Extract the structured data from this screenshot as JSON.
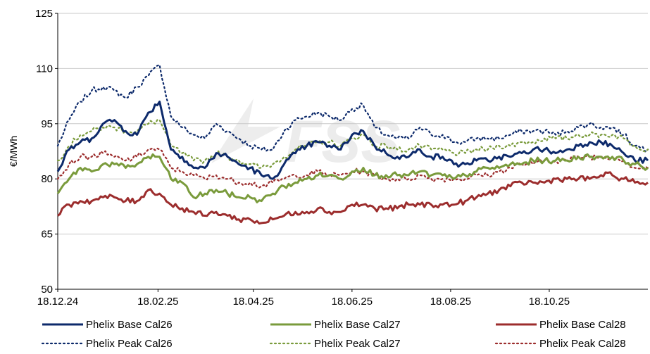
{
  "chart_data": {
    "type": "line",
    "ylabel": "€/MWh",
    "ylim": [
      50,
      125
    ],
    "yticks": [
      50,
      65,
      80,
      95,
      110,
      125
    ],
    "xlim": [
      "2024-12-18",
      "2025-12-18"
    ],
    "xticks": [
      "18.12.24",
      "18.02.25",
      "18.04.25",
      "18.06.25",
      "18.08.25",
      "18.10.25"
    ],
    "xtick_dates": [
      "2024-12-18",
      "2025-02-18",
      "2025-04-18",
      "2025-06-18",
      "2025-08-18",
      "2025-10-18"
    ],
    "grid": "horizontal",
    "legend_position": "bottom",
    "watermark": "FSS",
    "series": [
      {
        "name": "Phelix Base Cal26",
        "color": "#0d2a6b",
        "dash": "solid",
        "x": [
          "2024-12-18",
          "2024-12-25",
          "2025-01-01",
          "2025-01-08",
          "2025-01-15",
          "2025-01-22",
          "2025-01-29",
          "2025-02-05",
          "2025-02-12",
          "2025-02-19",
          "2025-02-26",
          "2025-03-05",
          "2025-03-12",
          "2025-03-19",
          "2025-03-26",
          "2025-04-02",
          "2025-04-09",
          "2025-04-16",
          "2025-04-23",
          "2025-04-30",
          "2025-05-07",
          "2025-05-14",
          "2025-05-21",
          "2025-05-28",
          "2025-06-04",
          "2025-06-11",
          "2025-06-18",
          "2025-06-25",
          "2025-07-02",
          "2025-07-09",
          "2025-07-16",
          "2025-07-23",
          "2025-07-30",
          "2025-08-06",
          "2025-08-13",
          "2025-08-20",
          "2025-08-27",
          "2025-09-03",
          "2025-09-10",
          "2025-09-17",
          "2025-09-24",
          "2025-10-01",
          "2025-10-08",
          "2025-10-15",
          "2025-10-22",
          "2025-10-29",
          "2025-11-05",
          "2025-11-12",
          "2025-11-19",
          "2025-11-26",
          "2025-12-03",
          "2025-12-10",
          "2025-12-18"
        ],
        "y": [
          82,
          88,
          90,
          91,
          95,
          96,
          93,
          92,
          98,
          101,
          88,
          86,
          83,
          83,
          87,
          86,
          84,
          83,
          81,
          80,
          84,
          87,
          89,
          90,
          89,
          88,
          92,
          93,
          89,
          87,
          86,
          86,
          88,
          86,
          86,
          84,
          84,
          85,
          85,
          86,
          86,
          87,
          88,
          88,
          87,
          88,
          89,
          90,
          90,
          89,
          87,
          85,
          85
        ]
      },
      {
        "name": "Phelix Base Cal27",
        "color": "#7a9b3c",
        "dash": "solid",
        "x": [
          "2024-12-18",
          "2024-12-25",
          "2025-01-01",
          "2025-01-08",
          "2025-01-15",
          "2025-01-22",
          "2025-01-29",
          "2025-02-05",
          "2025-02-12",
          "2025-02-19",
          "2025-02-26",
          "2025-03-05",
          "2025-03-12",
          "2025-03-19",
          "2025-03-26",
          "2025-04-02",
          "2025-04-09",
          "2025-04-16",
          "2025-04-23",
          "2025-04-30",
          "2025-05-07",
          "2025-05-14",
          "2025-05-21",
          "2025-05-28",
          "2025-06-04",
          "2025-06-11",
          "2025-06-18",
          "2025-06-25",
          "2025-07-02",
          "2025-07-09",
          "2025-07-16",
          "2025-07-23",
          "2025-07-30",
          "2025-08-06",
          "2025-08-13",
          "2025-08-20",
          "2025-08-27",
          "2025-09-03",
          "2025-09-10",
          "2025-09-17",
          "2025-09-24",
          "2025-10-01",
          "2025-10-08",
          "2025-10-15",
          "2025-10-22",
          "2025-10-29",
          "2025-11-05",
          "2025-11-12",
          "2025-11-19",
          "2025-11-26",
          "2025-12-03",
          "2025-12-10",
          "2025-12-18"
        ],
        "y": [
          76,
          80,
          83,
          82,
          84,
          84,
          83,
          84,
          86,
          86,
          80,
          79,
          75,
          76,
          77,
          76,
          75,
          75,
          74,
          76,
          78,
          79,
          80,
          81,
          81,
          80,
          82,
          83,
          81,
          81,
          81,
          81,
          82,
          81,
          81,
          80,
          81,
          82,
          83,
          83,
          84,
          84,
          85,
          85,
          85,
          85,
          86,
          86,
          86,
          86,
          85,
          84,
          83
        ]
      },
      {
        "name": "Phelix Base Cal28",
        "color": "#9c2d2d",
        "dash": "solid",
        "x": [
          "2024-12-18",
          "2024-12-25",
          "2025-01-01",
          "2025-01-08",
          "2025-01-15",
          "2025-01-22",
          "2025-01-29",
          "2025-02-05",
          "2025-02-12",
          "2025-02-19",
          "2025-02-26",
          "2025-03-05",
          "2025-03-12",
          "2025-03-19",
          "2025-03-26",
          "2025-04-02",
          "2025-04-09",
          "2025-04-16",
          "2025-04-23",
          "2025-04-30",
          "2025-05-07",
          "2025-05-14",
          "2025-05-21",
          "2025-05-28",
          "2025-06-04",
          "2025-06-11",
          "2025-06-18",
          "2025-06-25",
          "2025-07-02",
          "2025-07-09",
          "2025-07-16",
          "2025-07-23",
          "2025-07-30",
          "2025-08-06",
          "2025-08-13",
          "2025-08-20",
          "2025-08-27",
          "2025-09-03",
          "2025-09-10",
          "2025-09-17",
          "2025-09-24",
          "2025-10-01",
          "2025-10-08",
          "2025-10-15",
          "2025-10-22",
          "2025-10-29",
          "2025-11-05",
          "2025-11-12",
          "2025-11-19",
          "2025-11-26",
          "2025-12-03",
          "2025-12-10",
          "2025-12-18"
        ],
        "y": [
          70,
          73,
          74,
          74,
          75,
          75,
          74,
          74,
          77,
          76,
          73,
          72,
          71,
          70,
          71,
          70,
          69,
          69,
          68,
          69,
          70,
          71,
          71,
          72,
          71,
          71,
          73,
          73,
          72,
          72,
          72,
          73,
          73,
          73,
          73,
          73,
          74,
          75,
          76,
          77,
          78,
          79,
          79,
          79,
          80,
          80,
          80,
          80,
          81,
          81,
          80,
          79,
          79
        ]
      },
      {
        "name": "Phelix Peak Cal26",
        "color": "#0d2a6b",
        "dash": "dotted",
        "x": [
          "2024-12-18",
          "2024-12-25",
          "2025-01-01",
          "2025-01-08",
          "2025-01-15",
          "2025-01-22",
          "2025-01-29",
          "2025-02-05",
          "2025-02-12",
          "2025-02-19",
          "2025-02-26",
          "2025-03-05",
          "2025-03-12",
          "2025-03-19",
          "2025-03-26",
          "2025-04-02",
          "2025-04-09",
          "2025-04-16",
          "2025-04-23",
          "2025-04-30",
          "2025-05-07",
          "2025-05-14",
          "2025-05-21",
          "2025-05-28",
          "2025-06-04",
          "2025-06-11",
          "2025-06-18",
          "2025-06-25",
          "2025-07-02",
          "2025-07-09",
          "2025-07-16",
          "2025-07-23",
          "2025-07-30",
          "2025-08-06",
          "2025-08-13",
          "2025-08-20",
          "2025-08-27",
          "2025-09-03",
          "2025-09-10",
          "2025-09-17",
          "2025-09-24",
          "2025-10-01",
          "2025-10-08",
          "2025-10-15",
          "2025-10-22",
          "2025-10-29",
          "2025-11-05",
          "2025-11-12",
          "2025-11-19",
          "2025-11-26",
          "2025-12-03",
          "2025-12-10",
          "2025-12-18"
        ],
        "y": [
          89,
          96,
          101,
          104,
          105,
          104,
          102,
          105,
          108,
          111,
          97,
          94,
          92,
          91,
          95,
          93,
          91,
          89,
          88,
          88,
          93,
          96,
          97,
          98,
          97,
          96,
          99,
          100,
          94,
          92,
          91,
          91,
          94,
          92,
          92,
          90,
          90,
          91,
          91,
          91,
          92,
          93,
          93,
          93,
          92,
          93,
          94,
          95,
          94,
          94,
          92,
          89,
          88
        ]
      },
      {
        "name": "Phelix Peak Cal27",
        "color": "#7a9b3c",
        "dash": "dotted",
        "x": [
          "2024-12-18",
          "2024-12-25",
          "2025-01-01",
          "2025-01-08",
          "2025-01-15",
          "2025-01-22",
          "2025-01-29",
          "2025-02-05",
          "2025-02-12",
          "2025-02-19",
          "2025-02-26",
          "2025-03-05",
          "2025-03-12",
          "2025-03-19",
          "2025-03-26",
          "2025-04-02",
          "2025-04-09",
          "2025-04-16",
          "2025-04-23",
          "2025-04-30",
          "2025-05-07",
          "2025-05-14",
          "2025-05-21",
          "2025-05-28",
          "2025-06-04",
          "2025-06-11",
          "2025-06-18",
          "2025-06-25",
          "2025-07-02",
          "2025-07-09",
          "2025-07-16",
          "2025-07-23",
          "2025-07-30",
          "2025-08-06",
          "2025-08-13",
          "2025-08-20",
          "2025-08-27",
          "2025-09-03",
          "2025-09-10",
          "2025-09-17",
          "2025-09-24",
          "2025-10-01",
          "2025-10-08",
          "2025-10-15",
          "2025-10-22",
          "2025-10-29",
          "2025-11-05",
          "2025-11-12",
          "2025-11-19",
          "2025-11-26",
          "2025-12-03",
          "2025-12-10",
          "2025-12-18"
        ],
        "y": [
          85,
          89,
          92,
          93,
          94,
          94,
          93,
          93,
          95,
          96,
          89,
          87,
          85,
          85,
          87,
          86,
          85,
          84,
          83,
          84,
          86,
          88,
          89,
          90,
          90,
          89,
          91,
          92,
          89,
          89,
          88,
          88,
          89,
          88,
          88,
          87,
          87,
          88,
          88,
          89,
          89,
          90,
          90,
          91,
          91,
          91,
          92,
          92,
          92,
          92,
          91,
          89,
          88
        ]
      },
      {
        "name": "Phelix Peak Cal28",
        "color": "#9c2d2d",
        "dash": "dotted",
        "x": [
          "2024-12-18",
          "2024-12-25",
          "2025-01-01",
          "2025-01-08",
          "2025-01-15",
          "2025-01-22",
          "2025-01-29",
          "2025-02-05",
          "2025-02-12",
          "2025-02-19",
          "2025-02-26",
          "2025-03-05",
          "2025-03-12",
          "2025-03-19",
          "2025-03-26",
          "2025-04-02",
          "2025-04-09",
          "2025-04-16",
          "2025-04-23",
          "2025-04-30",
          "2025-05-07",
          "2025-05-14",
          "2025-05-21",
          "2025-05-28",
          "2025-06-04",
          "2025-06-11",
          "2025-06-18",
          "2025-06-25",
          "2025-07-02",
          "2025-07-09",
          "2025-07-16",
          "2025-07-23",
          "2025-07-30",
          "2025-08-06",
          "2025-08-13",
          "2025-08-20",
          "2025-08-27",
          "2025-09-03",
          "2025-09-10",
          "2025-09-17",
          "2025-09-24",
          "2025-10-01",
          "2025-10-08",
          "2025-10-15",
          "2025-10-22",
          "2025-10-29",
          "2025-11-05",
          "2025-11-12",
          "2025-11-19",
          "2025-11-26",
          "2025-12-03",
          "2025-12-10",
          "2025-12-18"
        ],
        "y": [
          80,
          84,
          86,
          86,
          87,
          86,
          85,
          86,
          88,
          88,
          83,
          82,
          81,
          80,
          81,
          80,
          79,
          79,
          78,
          79,
          80,
          81,
          81,
          82,
          81,
          81,
          82,
          82,
          81,
          80,
          80,
          80,
          81,
          80,
          80,
          80,
          80,
          81,
          81,
          82,
          83,
          84,
          84,
          85,
          85,
          85,
          86,
          86,
          86,
          86,
          85,
          83,
          83
        ]
      }
    ]
  }
}
